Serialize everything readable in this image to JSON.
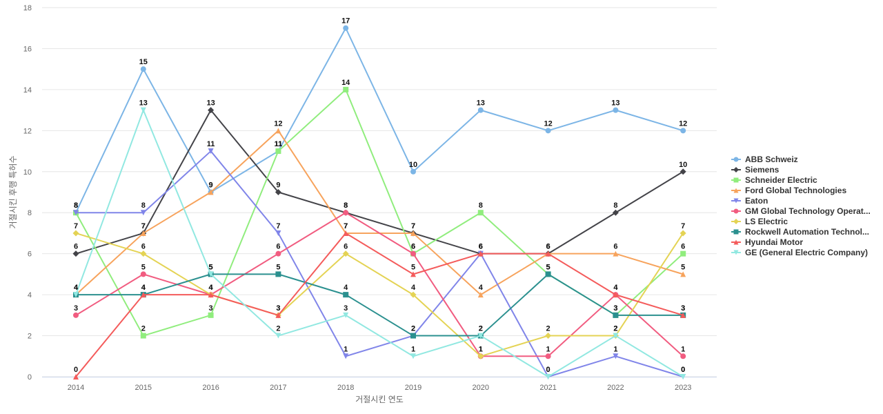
{
  "chart_data": {
    "type": "line",
    "title": "",
    "xlabel": "거절시킨 연도",
    "ylabel": "거절시킨 후행 특허수",
    "x": [
      "2014",
      "2015",
      "2016",
      "2017",
      "2018",
      "2019",
      "2020",
      "2021",
      "2022",
      "2023"
    ],
    "ylim": [
      0,
      18
    ],
    "yticks": [
      "0",
      "2",
      "4",
      "6",
      "8",
      "10",
      "12",
      "14",
      "16",
      "18"
    ],
    "grid": true,
    "legend_position": "right",
    "series": [
      {
        "name": "ABB Schweiz",
        "display_name": "ABB Schweiz",
        "color": "#7cb5e6",
        "marker": "circle",
        "values": [
          8,
          15,
          9,
          11,
          17,
          10,
          13,
          12,
          13,
          12
        ]
      },
      {
        "name": "Siemens",
        "display_name": "Siemens",
        "color": "#434348",
        "marker": "diamond",
        "values": [
          6,
          7,
          13,
          9,
          8,
          7,
          6,
          6,
          8,
          10
        ]
      },
      {
        "name": "Schneider Electric",
        "display_name": "Schneider Electric",
        "color": "#90ed7d",
        "marker": "square",
        "values": [
          8,
          2,
          3,
          11,
          14,
          6,
          8,
          5,
          3,
          6
        ]
      },
      {
        "name": "Ford Global Technologies",
        "display_name": "Ford Global Technologies",
        "color": "#f7a35c",
        "marker": "triangle",
        "values": [
          4,
          7,
          9,
          12,
          7,
          7,
          4,
          6,
          6,
          5
        ]
      },
      {
        "name": "Eaton",
        "display_name": "Eaton",
        "color": "#8085e9",
        "marker": "triangle-down",
        "values": [
          8,
          8,
          11,
          7,
          1,
          2,
          6,
          0,
          1,
          0
        ]
      },
      {
        "name": "GM Global Technology Operations",
        "display_name": "GM Global Technology Operat...",
        "color": "#f15c80",
        "marker": "circle",
        "values": [
          3,
          5,
          4,
          6,
          8,
          6,
          1,
          1,
          4,
          1
        ]
      },
      {
        "name": "LS Electric",
        "display_name": "LS Electric",
        "color": "#e4d354",
        "marker": "diamond",
        "values": [
          7,
          6,
          4,
          3,
          6,
          4,
          1,
          2,
          2,
          7
        ]
      },
      {
        "name": "Rockwell Automation Technologies",
        "display_name": "Rockwell Automation Technol...",
        "color": "#2b908f",
        "marker": "square",
        "values": [
          4,
          4,
          5,
          5,
          4,
          2,
          2,
          5,
          3,
          3
        ]
      },
      {
        "name": "Hyundai Motor",
        "display_name": "Hyundai Motor",
        "color": "#f45b5b",
        "marker": "triangle",
        "values": [
          0,
          4,
          4,
          3,
          7,
          5,
          6,
          6,
          4,
          3
        ]
      },
      {
        "name": "GE (General Electric Company)",
        "display_name": "GE (General Electric Company)",
        "color": "#91e8e1",
        "marker": "triangle-down",
        "values": [
          4,
          13,
          5,
          2,
          3,
          1,
          2,
          0,
          2,
          0
        ]
      }
    ]
  }
}
